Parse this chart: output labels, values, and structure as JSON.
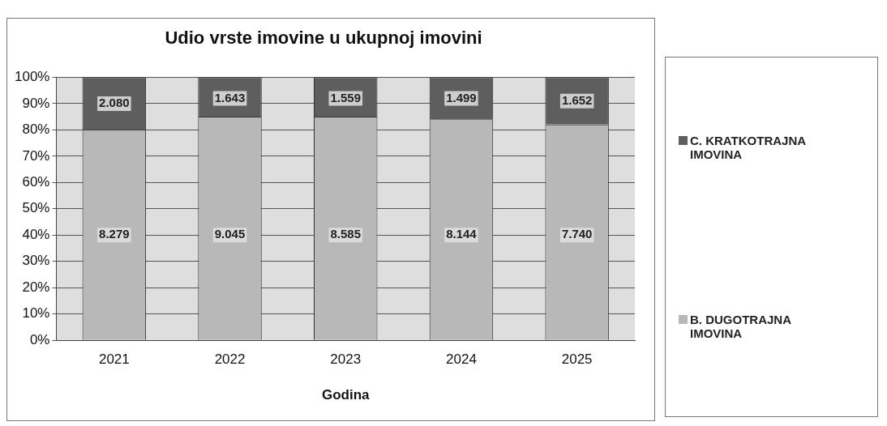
{
  "chart_data": {
    "type": "bar",
    "title": "Udio vrste imovine u ukupnoj imovini",
    "xlabel": "Godina",
    "categories": [
      "2021",
      "2022",
      "2023",
      "2024",
      "2025"
    ],
    "stacked": true,
    "series": [
      {
        "name": "B. DUGOTRAJNA IMOVINA",
        "color": "#b8b8b8",
        "values": [
          80,
          85,
          85,
          84,
          82
        ]
      },
      {
        "name": "C. KRATKOTRAJNA IMOVINA",
        "color": "#5e5e5e",
        "values": [
          20,
          15,
          15,
          16,
          18
        ]
      }
    ],
    "annotations": [
      {
        "text": "8.279",
        "x": "2021",
        "y": 40
      },
      {
        "text": "9.045",
        "x": "2022",
        "y": 40
      },
      {
        "text": "8.585",
        "x": "2023",
        "y": 40
      },
      {
        "text": "8.144",
        "x": "2024",
        "y": 40
      },
      {
        "text": "7.740",
        "x": "2025",
        "y": 40
      },
      {
        "text": "2.080",
        "x": "2021",
        "y": 90
      },
      {
        "text": "1.643",
        "x": "2022",
        "y": 92
      },
      {
        "text": "1.559",
        "x": "2023",
        "y": 92
      },
      {
        "text": "1.499",
        "x": "2024",
        "y": 92
      },
      {
        "text": "1.652",
        "x": "2025",
        "y": 91
      }
    ],
    "ylim": [
      0,
      100
    ],
    "yticks": [
      {
        "value": 0,
        "label": "0%"
      },
      {
        "value": 10,
        "label": "10%"
      },
      {
        "value": 20,
        "label": "20%"
      },
      {
        "value": 30,
        "label": "30%"
      },
      {
        "value": 40,
        "label": "40%"
      },
      {
        "value": 50,
        "label": "50%"
      },
      {
        "value": 60,
        "label": "60%"
      },
      {
        "value": 70,
        "label": "70%"
      },
      {
        "value": 80,
        "label": "80%"
      },
      {
        "value": 90,
        "label": "90%"
      },
      {
        "value": 100,
        "label": "100%"
      }
    ],
    "grid": "y",
    "legend": "right"
  }
}
